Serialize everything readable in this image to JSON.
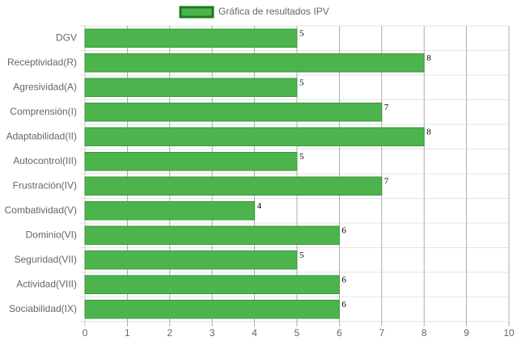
{
  "chart_data": {
    "type": "hbar",
    "categories": [
      "DGV",
      "Receptividad(R)",
      "Agresividad(A)",
      "Comprensión(I)",
      "Adaptabilidad(II)",
      "Autocontrol(III)",
      "Frustración(IV)",
      "Combatividad(V)",
      "Dominio(VI)",
      "Seguridad(VII)",
      "Actividad(VIII)",
      "Sociabilidad(IX)"
    ],
    "series": [
      {
        "name": "Gráfica de resultados IPV",
        "color": "#4db34d",
        "values": [
          5,
          8,
          5,
          7,
          8,
          5,
          7,
          4,
          6,
          5,
          6,
          6
        ]
      }
    ],
    "xlim": [
      0,
      10
    ],
    "xticks": [
      0,
      1,
      2,
      3,
      4,
      5,
      6,
      7,
      8,
      9,
      10
    ],
    "grid": true,
    "legend": "top"
  }
}
